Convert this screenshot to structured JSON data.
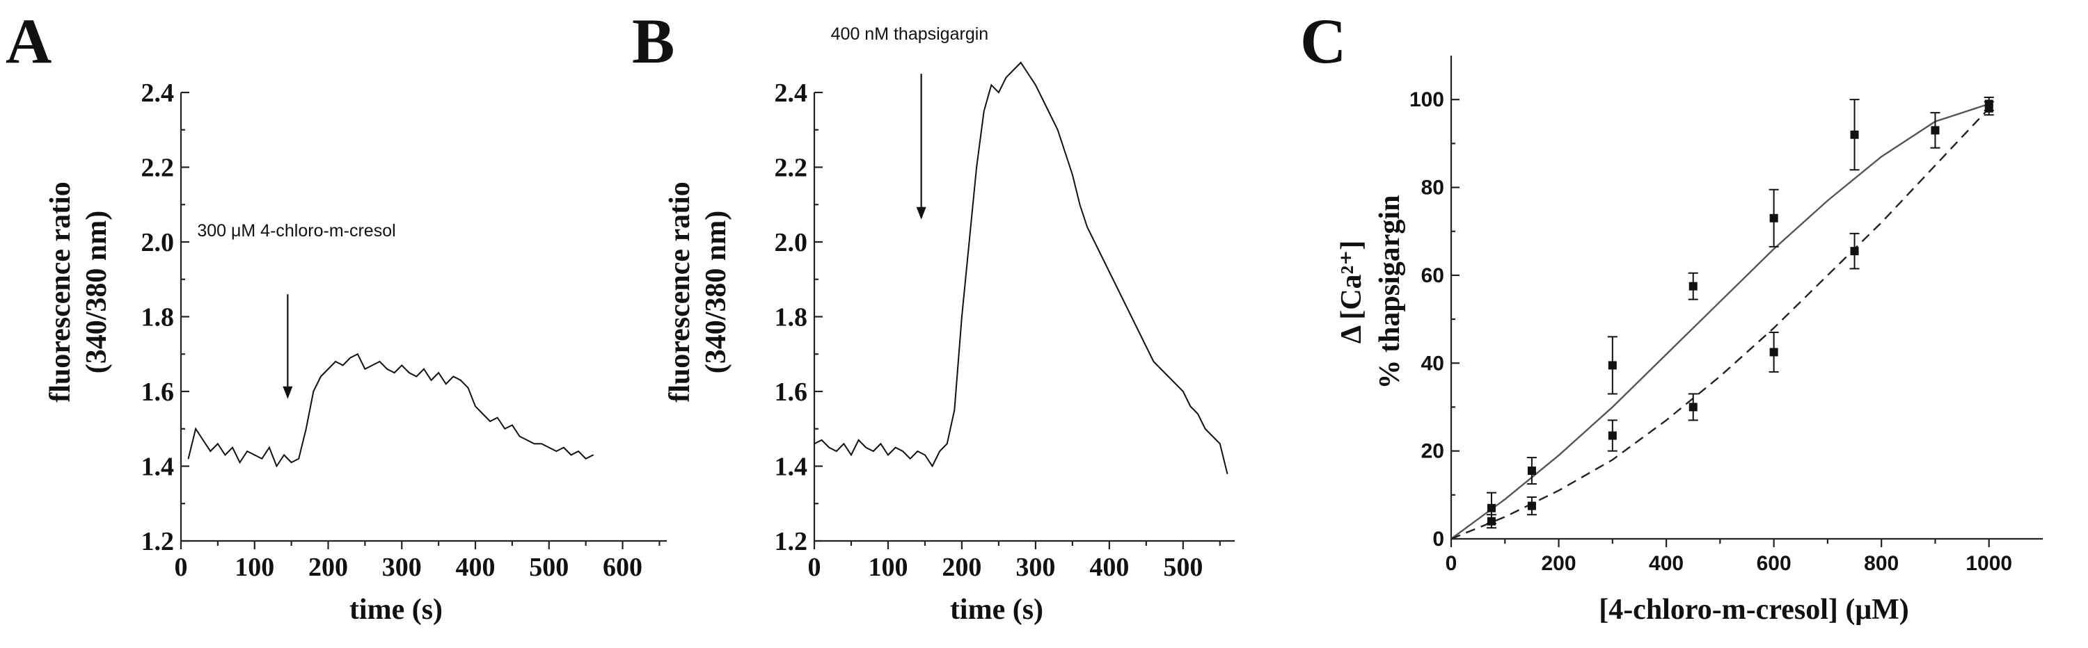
{
  "chart_data": [
    {
      "panel": "A",
      "type": "line",
      "xlabel": "time (s)",
      "ylabel": [
        "fluorescence ratio",
        "(340/380 nm)"
      ],
      "xlim": [
        0,
        660
      ],
      "ylim": [
        1.2,
        2.4
      ],
      "x_ticks": [
        "0",
        "100",
        "200",
        "300",
        "400",
        "500",
        "600"
      ],
      "y_ticks": [
        "1.2",
        "1.4",
        "1.6",
        "1.8",
        "2.0",
        "2.2",
        "2.4"
      ],
      "annotation": {
        "text": "300 μM 4-chloro-m-cresol",
        "x": 145,
        "y_arrow_tip": 1.58,
        "y_arrow_tail": 1.86
      },
      "series": [
        {
          "x": [
            10,
            20,
            30,
            40,
            50,
            60,
            70,
            80,
            90,
            100,
            110,
            120,
            130,
            140,
            150,
            160,
            170,
            180,
            190,
            200,
            210,
            220,
            230,
            240,
            250,
            260,
            270,
            280,
            290,
            300,
            310,
            320,
            330,
            340,
            350,
            360,
            370,
            380,
            390,
            400,
            410,
            420,
            430,
            440,
            450,
            460,
            470,
            480,
            490,
            500,
            510,
            520,
            530,
            540,
            550,
            560
          ],
          "values": [
            1.42,
            1.5,
            1.47,
            1.44,
            1.46,
            1.43,
            1.45,
            1.41,
            1.44,
            1.43,
            1.42,
            1.45,
            1.4,
            1.43,
            1.41,
            1.42,
            1.5,
            1.6,
            1.64,
            1.66,
            1.68,
            1.67,
            1.69,
            1.7,
            1.66,
            1.67,
            1.68,
            1.66,
            1.65,
            1.67,
            1.65,
            1.64,
            1.66,
            1.63,
            1.65,
            1.62,
            1.64,
            1.63,
            1.61,
            1.56,
            1.54,
            1.52,
            1.53,
            1.5,
            1.51,
            1.48,
            1.47,
            1.46,
            1.46,
            1.45,
            1.44,
            1.45,
            1.43,
            1.44,
            1.42,
            1.43
          ]
        }
      ]
    },
    {
      "panel": "B",
      "type": "line",
      "xlabel": "time  (s)",
      "ylabel": [
        "fluorescence ratio",
        "(340/380 nm)"
      ],
      "xlim": [
        0,
        570
      ],
      "ylim": [
        1.2,
        2.4
      ],
      "x_ticks": [
        "0",
        "100",
        "200",
        "300",
        "400",
        "500"
      ],
      "y_ticks": [
        "1.2",
        "1.4",
        "1.6",
        "1.8",
        "2.0",
        "2.2",
        "2.4"
      ],
      "annotation": {
        "text": "400 nM thapsigargin",
        "x": 145,
        "y_arrow_tip": 2.06,
        "y_arrow_tail": 2.45
      },
      "series": [
        {
          "x": [
            0,
            10,
            20,
            30,
            40,
            50,
            60,
            70,
            80,
            90,
            100,
            110,
            120,
            130,
            140,
            150,
            160,
            170,
            180,
            190,
            200,
            210,
            220,
            230,
            240,
            250,
            260,
            270,
            280,
            290,
            300,
            310,
            320,
            330,
            340,
            350,
            360,
            370,
            380,
            390,
            400,
            410,
            420,
            430,
            440,
            450,
            460,
            470,
            480,
            490,
            500,
            510,
            520,
            530,
            540,
            550,
            560
          ],
          "values": [
            1.46,
            1.47,
            1.45,
            1.44,
            1.46,
            1.43,
            1.47,
            1.45,
            1.44,
            1.46,
            1.43,
            1.45,
            1.44,
            1.42,
            1.44,
            1.43,
            1.4,
            1.44,
            1.46,
            1.55,
            1.8,
            2.0,
            2.2,
            2.35,
            2.42,
            2.4,
            2.44,
            2.46,
            2.48,
            2.45,
            2.42,
            2.38,
            2.34,
            2.3,
            2.24,
            2.18,
            2.1,
            2.04,
            2.0,
            1.96,
            1.92,
            1.88,
            1.84,
            1.8,
            1.76,
            1.72,
            1.68,
            1.66,
            1.64,
            1.62,
            1.6,
            1.56,
            1.54,
            1.5,
            1.48,
            1.46,
            1.38
          ]
        }
      ]
    },
    {
      "panel": "C",
      "type": "scatter",
      "xlabel": "[4-chloro-m-cresol] (μM)",
      "ylabel": [
        "Δ [Ca²⁺]",
        "% thapsigargin"
      ],
      "xlim": [
        0,
        1100
      ],
      "ylim": [
        0,
        110
      ],
      "x_ticks": [
        "0",
        "200",
        "400",
        "600",
        "800",
        "1000"
      ],
      "y_ticks": [
        "0",
        "20",
        "40",
        "60",
        "80",
        "100"
      ],
      "series": [
        {
          "points": [
            {
              "x": 75,
              "y": 7,
              "err": 3.5
            },
            {
              "x": 150,
              "y": 15.5,
              "err": 3
            },
            {
              "x": 300,
              "y": 39.5,
              "err": 6.5
            },
            {
              "x": 450,
              "y": 57.5,
              "err": 3
            },
            {
              "x": 600,
              "y": 73,
              "err": 6.5
            },
            {
              "x": 750,
              "y": 92,
              "err": 8
            },
            {
              "x": 900,
              "y": 93,
              "err": 4
            },
            {
              "x": 1000,
              "y": 99,
              "err": 1.5
            }
          ],
          "fit": "solid"
        },
        {
          "points": [
            {
              "x": 75,
              "y": 4,
              "err": 1.5
            },
            {
              "x": 150,
              "y": 7.5,
              "err": 2
            },
            {
              "x": 300,
              "y": 23.5,
              "err": 3.5
            },
            {
              "x": 450,
              "y": 30,
              "err": 3
            },
            {
              "x": 600,
              "y": 42.5,
              "err": 4.5
            },
            {
              "x": 750,
              "y": 65.5,
              "err": 4
            },
            {
              "x": 1000,
              "y": 98,
              "err": 1.5
            }
          ],
          "fit": "dashed"
        }
      ],
      "fits": [
        {
          "style": "solid",
          "x": [
            0,
            100,
            200,
            300,
            400,
            500,
            600,
            700,
            800,
            900,
            1000
          ],
          "y": [
            0,
            9,
            19,
            30,
            42,
            54,
            66,
            77,
            87,
            95,
            99
          ]
        },
        {
          "style": "dashed",
          "x": [
            0,
            100,
            200,
            300,
            400,
            500,
            600,
            700,
            800,
            900,
            1000
          ],
          "y": [
            0,
            5,
            11,
            18,
            27,
            37,
            48,
            60,
            72,
            85,
            98
          ]
        }
      ]
    }
  ],
  "panels": {
    "a": {
      "letter": "A"
    },
    "b": {
      "letter": "B"
    },
    "c": {
      "letter": "C"
    }
  }
}
